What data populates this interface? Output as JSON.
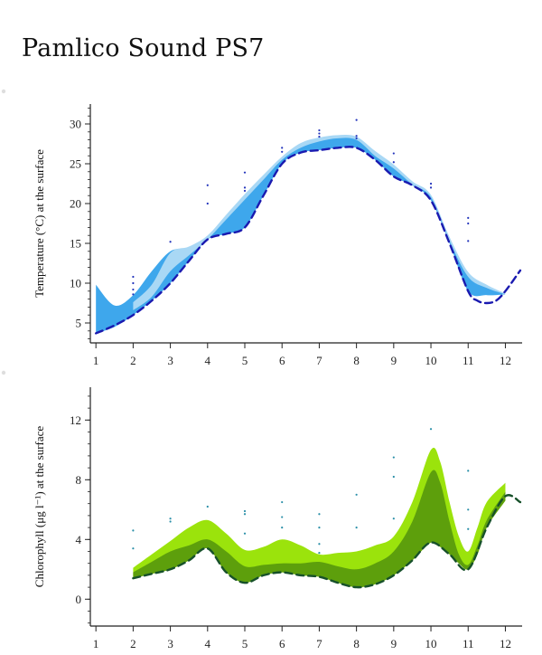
{
  "title": "Pamlico Sound PS7",
  "chart_data": [
    {
      "id": "temperature",
      "type": "area",
      "ylabel": "Temperature (°C) at the surface",
      "xlim": [
        0.85,
        12.45
      ],
      "ylim": [
        2.5,
        32.5
      ],
      "xticks": [
        1,
        2,
        3,
        4,
        5,
        6,
        7,
        8,
        9,
        10,
        11,
        12
      ],
      "yticks": [
        5,
        10,
        15,
        20,
        25,
        30
      ],
      "colors": {
        "outer_band": "#3ea7ec",
        "inner_band": "#a9d8f5",
        "line": "#1a1ab0",
        "points": "#2233bb"
      },
      "bands": [
        {
          "name": "outer",
          "x": [
            1,
            1.5,
            2,
            2.5,
            3,
            3.5,
            4,
            4.5,
            5,
            5.5,
            6,
            6.5,
            7,
            7.5,
            8,
            8.5,
            9,
            9.5,
            10,
            10.5,
            11,
            11.5,
            12
          ],
          "low": [
            3.7,
            4.5,
            6.0,
            7.8,
            10.0,
            12.8,
            15.5,
            16.2,
            17.0,
            21.0,
            25.0,
            26.4,
            26.7,
            27.0,
            27.0,
            25.5,
            23.4,
            22.3,
            20.4,
            15.0,
            9.0,
            8.5,
            8.6
          ],
          "high": [
            9.8,
            7.2,
            8.5,
            11.5,
            14.0,
            14.5,
            15.9,
            18.5,
            21.0,
            23.5,
            25.8,
            27.1,
            28.0,
            28.4,
            28.2,
            26.0,
            24.5,
            22.5,
            21.0,
            15.5,
            11.0,
            9.5,
            8.6
          ]
        },
        {
          "name": "inner",
          "x": [
            2,
            2.5,
            3,
            3.5,
            4,
            4.5,
            5,
            5.5,
            6,
            6.5,
            7,
            7.5,
            8,
            8.5,
            9,
            9.5,
            10,
            10.5,
            11,
            11.5,
            12
          ],
          "low": [
            6.6,
            8.3,
            11.5,
            13.5,
            15.5,
            18.0,
            20.5,
            23.0,
            25.5,
            27.0,
            27.8,
            28.2,
            28.0,
            26.0,
            24.4,
            22.4,
            20.8,
            15.3,
            10.8,
            9.4,
            8.6
          ],
          "high": [
            7.6,
            9.8,
            13.8,
            14.6,
            16.0,
            18.6,
            21.2,
            23.6,
            25.9,
            27.6,
            28.3,
            28.6,
            28.4,
            26.6,
            24.9,
            22.8,
            21.1,
            15.8,
            11.4,
            9.8,
            8.7
          ]
        }
      ],
      "series": [
        {
          "x": [
            1,
            1.5,
            2,
            2.5,
            3,
            3.5,
            4,
            4.5,
            5,
            5.5,
            6,
            6.5,
            7,
            7.5,
            8,
            8.5,
            9,
            9.5,
            10,
            10.5,
            11,
            11.25,
            11.5,
            11.75,
            12,
            12.4
          ],
          "values": [
            3.7,
            4.7,
            6.0,
            7.8,
            10.0,
            12.8,
            15.5,
            16.2,
            17.0,
            21.0,
            25.0,
            26.4,
            26.7,
            27.0,
            27.0,
            25.5,
            23.4,
            22.3,
            20.4,
            15.0,
            9.0,
            7.8,
            7.5,
            7.8,
            9.0,
            11.6
          ]
        }
      ],
      "points": {
        "x": [
          2,
          2,
          2,
          2,
          3,
          4,
          4,
          5,
          5,
          5,
          6,
          6,
          7,
          7,
          7,
          8,
          8,
          8,
          9,
          9,
          10,
          10,
          11,
          11,
          11
        ],
        "y": [
          10.8,
          10.0,
          9.2,
          8.6,
          15.2,
          22.3,
          20.0,
          23.9,
          22.0,
          21.6,
          27.0,
          26.5,
          29.2,
          28.8,
          28.4,
          30.5,
          28.5,
          28.2,
          26.3,
          25.2,
          22.5,
          22.0,
          18.2,
          17.5,
          15.3
        ]
      }
    },
    {
      "id": "chlorophyll",
      "type": "area",
      "ylabel": "Chlorophyll (μg l⁻¹) at the surface",
      "xlim": [
        0.85,
        12.45
      ],
      "ylim": [
        -1.8,
        14.2
      ],
      "xticks": [
        1,
        2,
        3,
        4,
        5,
        6,
        7,
        8,
        9,
        10,
        11,
        12
      ],
      "yticks": [
        0,
        4,
        8,
        12
      ],
      "colors": {
        "outer_band": "#9be30c",
        "inner_band": "#5d9f0c",
        "line": "#17512a",
        "points": "#2a8fa8"
      },
      "bands": [
        {
          "name": "outer",
          "x": [
            2,
            2.5,
            3,
            3.5,
            4,
            4.5,
            5,
            5.5,
            6,
            6.5,
            7,
            7.5,
            8,
            8.5,
            9,
            9.5,
            10,
            10.25,
            10.5,
            10.75,
            11,
            11.25,
            11.5,
            12
          ],
          "low": [
            1.4,
            1.7,
            2.0,
            2.6,
            3.4,
            1.8,
            1.1,
            1.6,
            1.8,
            1.6,
            1.5,
            1.1,
            0.8,
            1.0,
            1.6,
            2.6,
            3.8,
            3.5,
            3.0,
            2.4,
            2.0,
            3.0,
            4.8,
            6.6
          ],
          "high": [
            2.1,
            3.0,
            3.9,
            4.8,
            5.3,
            4.4,
            3.3,
            3.5,
            4.0,
            3.6,
            3.0,
            3.1,
            3.2,
            3.6,
            4.2,
            6.5,
            10.0,
            9.2,
            6.5,
            4.2,
            3.2,
            4.8,
            6.5,
            7.8
          ]
        },
        {
          "name": "inner",
          "x": [
            2,
            2.5,
            3,
            3.5,
            4,
            4.5,
            5,
            5.5,
            6,
            6.5,
            7,
            7.5,
            8,
            8.5,
            9,
            9.5,
            10,
            10.25,
            10.5,
            10.75,
            11,
            11.25,
            11.5,
            12
          ],
          "low": [
            1.4,
            1.7,
            2.0,
            2.6,
            3.4,
            1.8,
            1.1,
            1.6,
            1.8,
            1.6,
            1.5,
            1.1,
            0.8,
            1.0,
            1.6,
            2.6,
            3.8,
            3.5,
            3.0,
            2.4,
            2.0,
            3.0,
            4.8,
            6.6
          ],
          "high": [
            1.8,
            2.5,
            3.2,
            3.6,
            4.0,
            3.2,
            2.2,
            2.3,
            2.4,
            2.4,
            2.5,
            2.2,
            2.0,
            2.4,
            3.2,
            5.2,
            8.5,
            7.8,
            5.2,
            3.0,
            2.3,
            3.6,
            5.3,
            7.2
          ]
        }
      ],
      "series": [
        {
          "x": [
            2,
            2.5,
            3,
            3.5,
            4,
            4.5,
            5,
            5.5,
            6,
            6.5,
            7,
            7.5,
            8,
            8.5,
            9,
            9.5,
            10,
            10.5,
            11,
            11.5,
            12,
            12.4
          ],
          "values": [
            1.4,
            1.7,
            2.0,
            2.6,
            3.4,
            1.8,
            1.1,
            1.6,
            1.8,
            1.6,
            1.5,
            1.1,
            0.8,
            1.0,
            1.6,
            2.6,
            3.8,
            3.0,
            2.0,
            4.8,
            6.9,
            6.5
          ]
        }
      ],
      "points": {
        "x": [
          2,
          2,
          3,
          3,
          4,
          5,
          5,
          5,
          6,
          6,
          6,
          7,
          7,
          7,
          7,
          8,
          8,
          9,
          9,
          9,
          10,
          11,
          11,
          11
        ],
        "y": [
          4.6,
          3.4,
          5.4,
          5.2,
          6.2,
          5.9,
          5.7,
          4.4,
          6.5,
          5.5,
          4.8,
          5.7,
          4.8,
          3.7,
          3.1,
          7.0,
          4.8,
          9.5,
          8.2,
          5.4,
          11.4,
          8.6,
          6.0,
          4.7
        ]
      }
    }
  ]
}
